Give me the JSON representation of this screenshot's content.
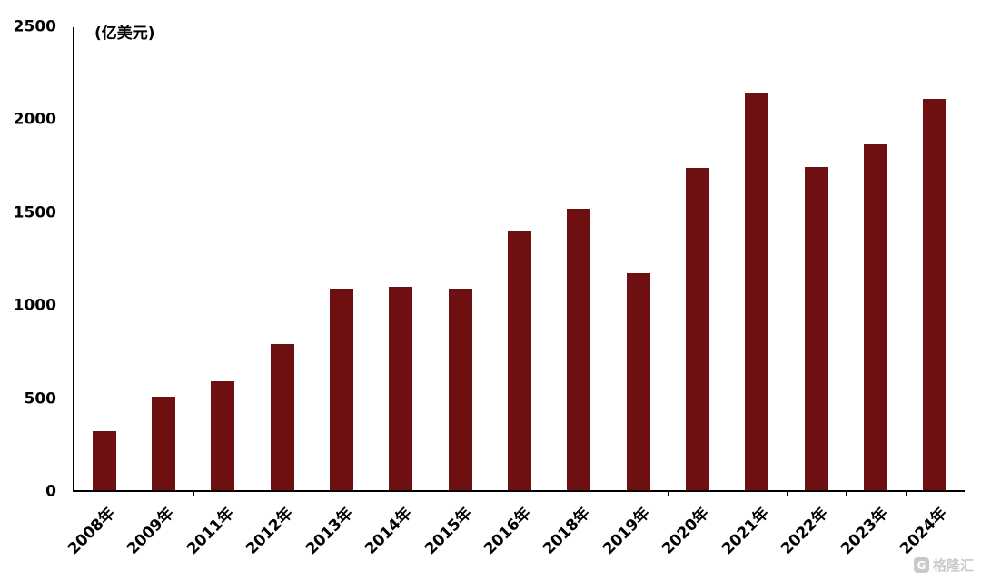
{
  "chart_data": {
    "type": "bar",
    "title": "",
    "unit_label": "(亿美元)",
    "xlabel": "",
    "ylabel": "",
    "categories": [
      "2008年",
      "2009年",
      "2011年",
      "2012年",
      "2013年",
      "2014年",
      "2015年",
      "2016年",
      "2018年",
      "2019年",
      "2020年",
      "2021年",
      "2022年",
      "2023年",
      "2024年"
    ],
    "values": [
      320,
      505,
      590,
      790,
      1090,
      1100,
      1090,
      1395,
      1520,
      1170,
      1740,
      2145,
      1745,
      1870,
      2115
    ],
    "ylim": [
      0,
      2500
    ],
    "yticks": [
      0,
      500,
      1000,
      1500,
      2000,
      2500
    ],
    "grid": false,
    "legend": "none",
    "bar_color": "#6E0F12",
    "axis_color": "#000000"
  },
  "watermark": {
    "text": "格隆汇",
    "logo_letter": "G",
    "color": "#c9c9c9"
  }
}
